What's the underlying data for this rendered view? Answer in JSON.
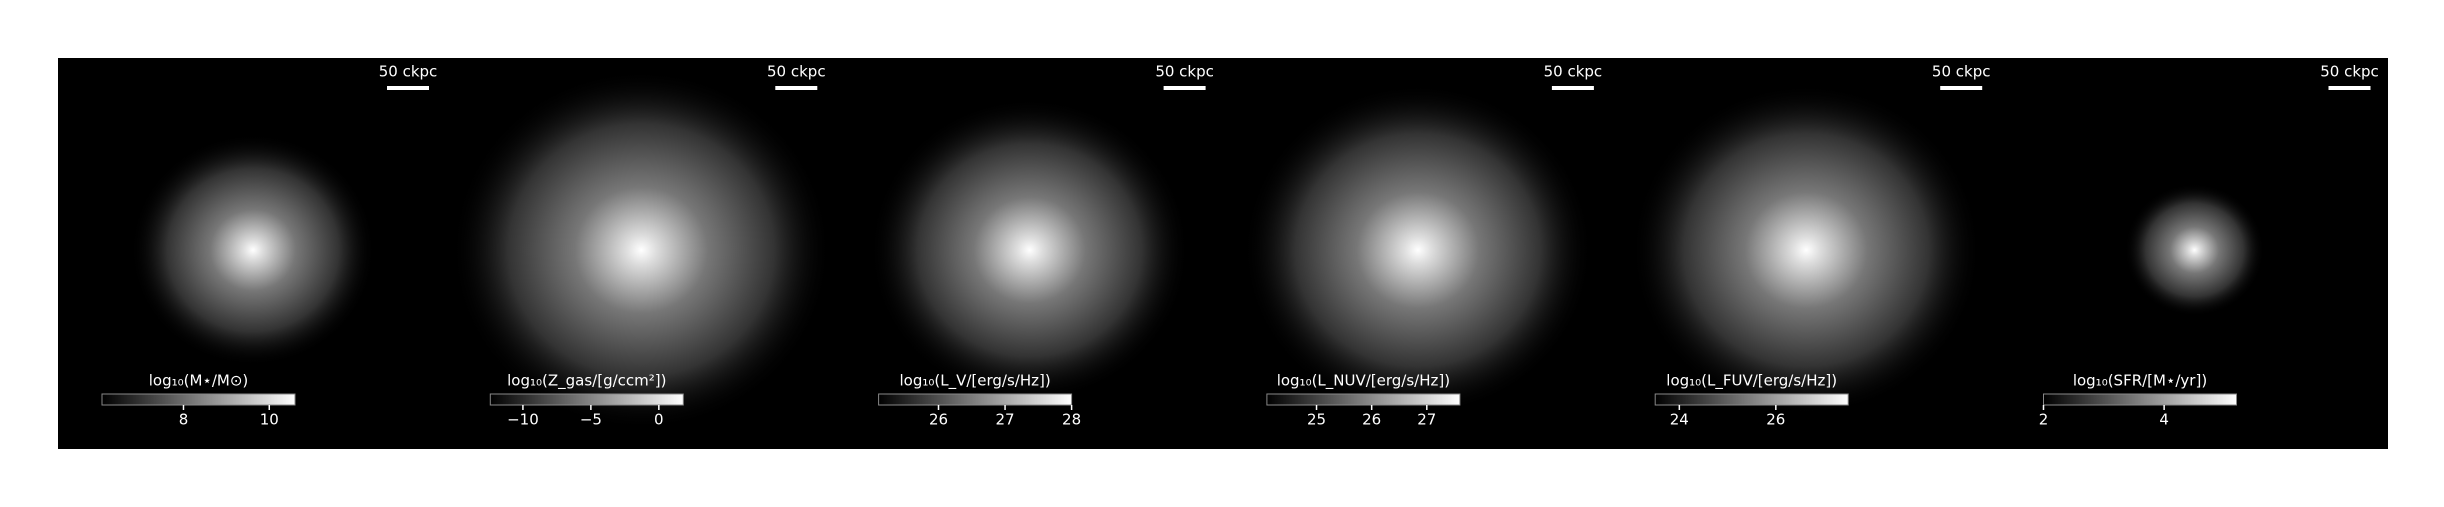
{
  "chart_data": [
    {
      "type": "image",
      "scale_bar": "50 ckpc",
      "colorbar_label": "log₁₀(M⋆/M⊙)",
      "xlim": [
        6.1,
        10.6
      ],
      "xticks": [
        8,
        10
      ],
      "size": 0.55
    },
    {
      "type": "image",
      "scale_bar": "50 ckpc",
      "colorbar_label": "log₁₀(Z_gas/[g/ccm²])",
      "xlim": [
        -12.4,
        1.8
      ],
      "xticks": [
        {
          "value": -10,
          "label": "−10"
        },
        {
          "value": -5,
          "label": "−5"
        },
        0
      ],
      "size": 1
    },
    {
      "type": "image",
      "scale_bar": "50 ckpc",
      "colorbar_label": "log₁₀(L_V/[erg/s/Hz])",
      "xlim": [
        25.1,
        28
      ],
      "xticks": [
        26,
        27,
        28
      ],
      "size": 0.8
    },
    {
      "type": "image",
      "scale_bar": "50 ckpc",
      "colorbar_label": "log₁₀(L_NUV/[erg/s/Hz])",
      "xlim": [
        24.1,
        27.6
      ],
      "xticks": [
        25,
        26,
        27
      ],
      "size": 0.9
    },
    {
      "type": "image",
      "scale_bar": "50 ckpc",
      "colorbar_label": "log₁₀(L_FUV/[erg/s/Hz])",
      "xlim": [
        23.5,
        27.5
      ],
      "xticks": [
        24,
        26
      ],
      "size": 0.9
    },
    {
      "type": "image",
      "scale_bar": "50 ckpc",
      "colorbar_label": "log₁₀(SFR/[M⋆/yr])",
      "xlim": [
        2.0,
        5.2
      ],
      "xticks": [
        2,
        4
      ],
      "size": 0.2
    }
  ]
}
